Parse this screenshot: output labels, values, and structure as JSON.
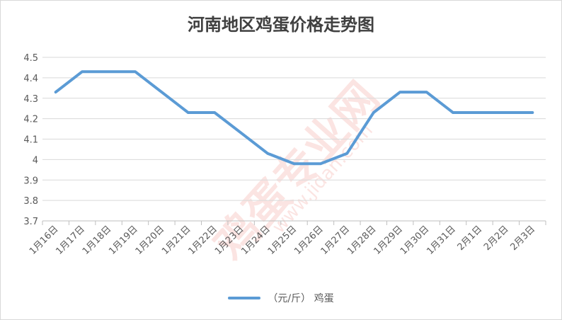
{
  "chart_data": {
    "type": "line",
    "title": "河南地区鸡蛋价格走势图",
    "categories": [
      "1月16日",
      "1月17日",
      "1月18日",
      "1月19日",
      "1月20日",
      "1月21日",
      "1月22日",
      "1月23日",
      "1月24日",
      "1月25日",
      "1月26日",
      "1月27日",
      "1月28日",
      "1月29日",
      "1月30日",
      "1月31日",
      "2月1日",
      "2月2日",
      "2月3日"
    ],
    "series": [
      {
        "name": "（元/斤）  鸡蛋",
        "color": "#5b9bd5",
        "values": [
          4.33,
          4.43,
          4.43,
          4.43,
          4.33,
          4.23,
          4.23,
          4.13,
          4.03,
          3.98,
          3.98,
          4.03,
          4.23,
          4.33,
          4.33,
          4.23,
          4.23,
          4.23,
          4.23
        ]
      }
    ],
    "ylim": [
      3.7,
      4.5
    ],
    "yticks": [
      3.7,
      3.8,
      3.9,
      4,
      4.1,
      4.2,
      4.3,
      4.4,
      4.5
    ],
    "grid": true,
    "legend_position": "bottom"
  },
  "watermark": {
    "text": "鸡蛋专业网",
    "url": "www.jidan.com"
  }
}
